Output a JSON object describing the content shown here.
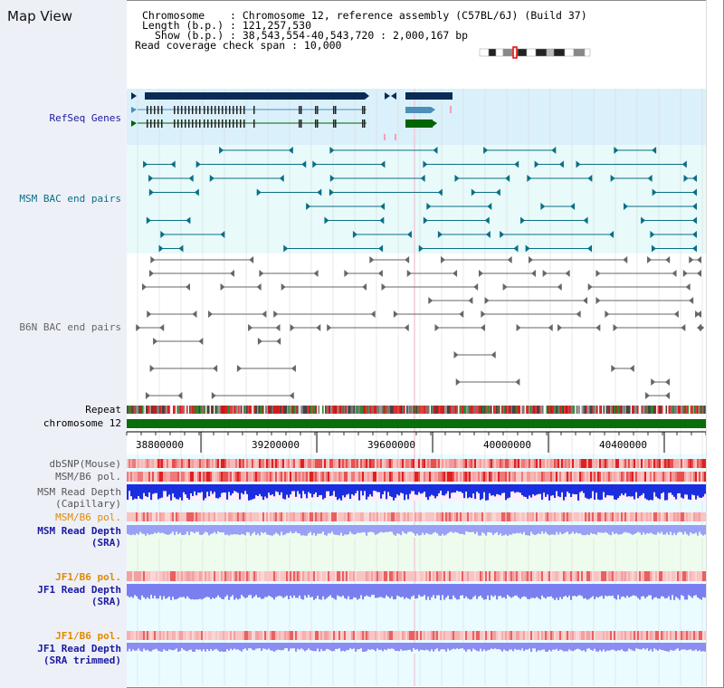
{
  "title": "Map View",
  "info": {
    "chromosome_key": "Chromosome",
    "chromosome_val": ": Chromosome 12, reference assembly (C57BL/6J) (Build 37)",
    "length_key": "Length (b.p.)",
    "length_val": ": 121,257,530",
    "show_key": "Show (b.p.)",
    "show_val": ": 38,543,554-40,543,720 : 2,000,167 bp",
    "coverage": "Read coverage check span : 10,000"
  },
  "tracks": {
    "refseq": "RefSeq Genes",
    "msm_bac": "MSM BAC end pairs",
    "b6n_bac": "B6N BAC end pairs",
    "repeat": "Repeat",
    "chromosome": "chromosome 12",
    "dbsnp": "dbSNP(Mouse)",
    "msm_pol": "MSM/B6 pol.",
    "msm_depth_cap_1": "MSM Read Depth",
    "msm_depth_cap_2": "(Capillary)",
    "msm_pol_2": "MSM/B6 pol.",
    "msm_depth_sra_1": "MSM Read Depth",
    "msm_depth_sra_2": "(SRA)",
    "jf1_pol": "JF1/B6 pol.",
    "jf1_depth_1": "JF1 Read Depth",
    "jf1_depth_2": "(SRA)",
    "jf1_pol_2": "JF1/B6 pol.",
    "jf1_trim_1": "JF1 Read Depth",
    "jf1_trim_2": "(SRA trimmed)"
  },
  "axis": {
    "ticks": [
      "38800000",
      "39200000",
      "39600000",
      "40000000",
      "40400000"
    ],
    "tick_values": [
      38800000,
      39200000,
      39600000,
      40000000,
      40400000
    ],
    "range": [
      38543554,
      40543720
    ]
  },
  "colors": {
    "refseq_dark": "#0b2a55",
    "refseq_mid": "#4a90b8",
    "refseq_green": "#006400",
    "msm_bac": "#0a6f86",
    "b6n_bac": "#666666",
    "chromosome": "#0a6e0a",
    "label_blue": "#1a1aa0",
    "label_teal": "#0a6f86",
    "label_orange": "#e08a00"
  }
}
